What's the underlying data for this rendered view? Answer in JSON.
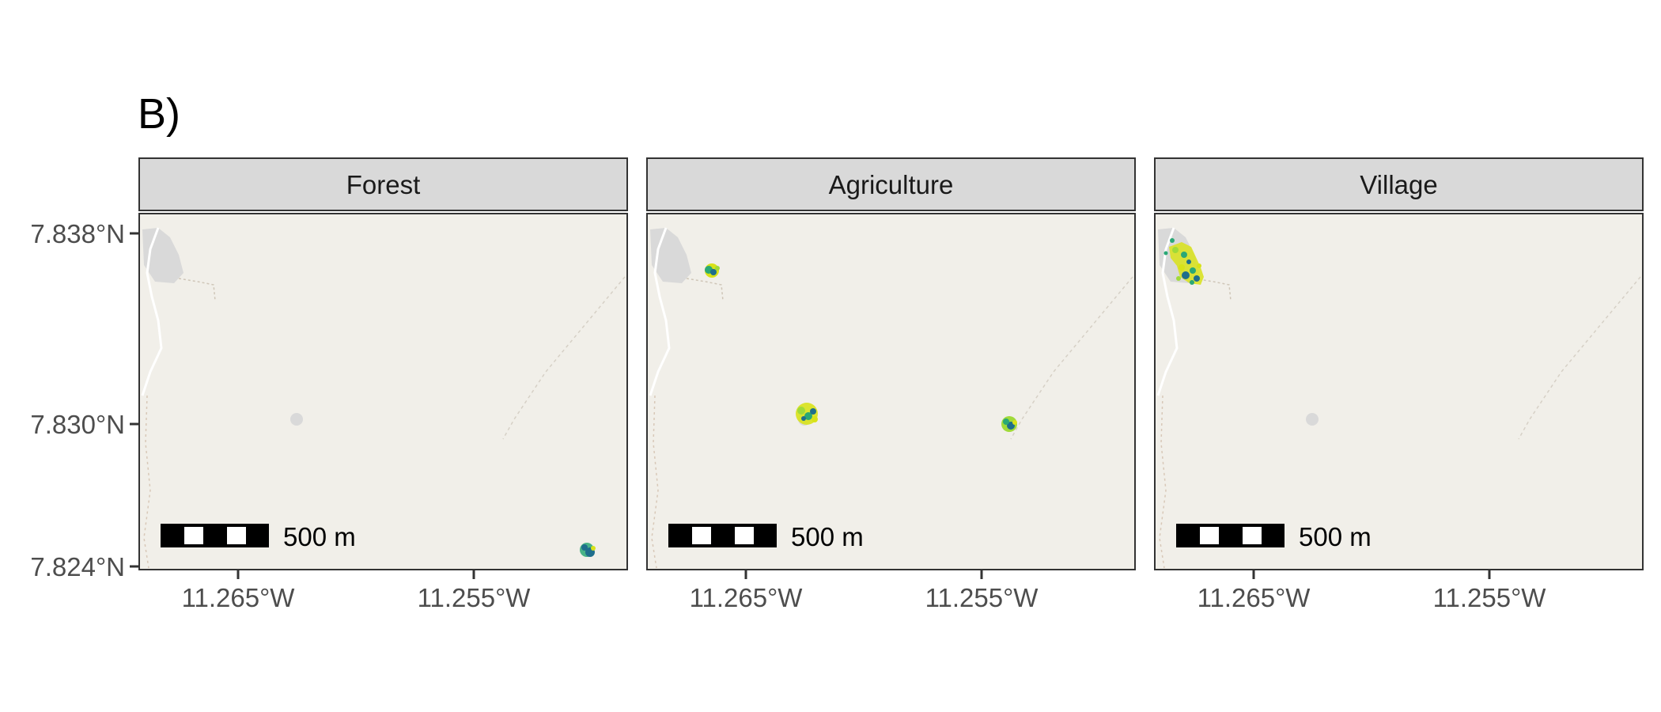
{
  "panel_label": "B)",
  "facets": [
    {
      "name": "Forest"
    },
    {
      "name": "Agriculture"
    },
    {
      "name": "Village"
    }
  ],
  "y_axis": {
    "ticks": [
      "7.838°N",
      "7.830°N",
      "7.824°N"
    ]
  },
  "x_axis": {
    "ticks": [
      "11.265°W",
      "11.255°W"
    ]
  },
  "scale_bar": {
    "label": "500 m"
  },
  "colors": {
    "background": "#f1efe9",
    "strip": "#d9d9d9",
    "border": "#333333",
    "settlement": "#d9d9d9",
    "road": "#ffffff",
    "points_dark": "#1f6e8c",
    "points_mid": "#2aa876",
    "points_light": "#d8e219"
  },
  "point_clusters": {
    "Forest": [
      "cluster-southeast"
    ],
    "Agriculture": [
      "cluster-northwest",
      "cluster-central",
      "cluster-east"
    ],
    "Village": [
      "cluster-village-large"
    ]
  }
}
